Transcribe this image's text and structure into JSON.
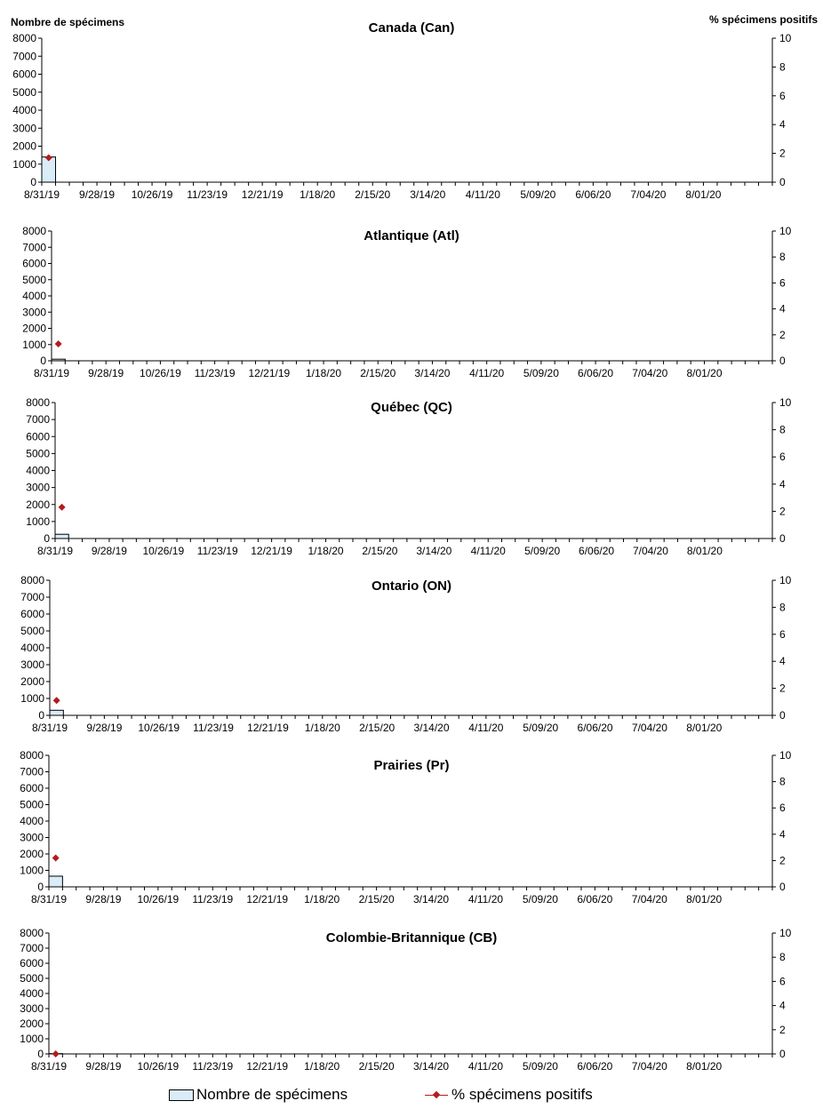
{
  "axis_titles": {
    "left": "Nombre de spécimens",
    "right": "% spécimens positifs"
  },
  "legend": [
    "Nombre de spécimens",
    "% spécimens positifs"
  ],
  "colors": {
    "bar_fill": "#d9ecf7",
    "bar_stroke": "#000000",
    "line": "#b31b1b"
  },
  "chart_data": [
    {
      "type": "bar",
      "title": "Canada (Can)",
      "x_tick_labels": [
        "8/31/19",
        "9/28/19",
        "10/26/19",
        "11/23/19",
        "12/21/19",
        "1/18/20",
        "2/15/20",
        "3/14/20",
        "4/11/20",
        "5/09/20",
        "6/06/20",
        "7/04/20",
        "8/01/20"
      ],
      "y_left_ticks": [
        0,
        1000,
        2000,
        3000,
        4000,
        5000,
        6000,
        7000,
        8000
      ],
      "y_right_ticks": [
        0,
        2,
        4,
        6,
        8,
        10
      ],
      "ylim_left": [
        0,
        8000
      ],
      "ylim_right": [
        0,
        10
      ],
      "series": [
        {
          "name": "Nombre de spécimens",
          "type": "bar",
          "values": [
            1400
          ]
        },
        {
          "name": "% spécimens positifs",
          "type": "line",
          "values": [
            1.7
          ]
        }
      ]
    },
    {
      "type": "bar",
      "title": "Atlantique (Atl)",
      "x_tick_labels": [
        "8/31/19",
        "9/28/19",
        "10/26/19",
        "11/23/19",
        "12/21/19",
        "1/18/20",
        "2/15/20",
        "3/14/20",
        "4/11/20",
        "5/09/20",
        "6/06/20",
        "7/04/20",
        "8/01/20"
      ],
      "y_left_ticks": [
        0,
        1000,
        2000,
        3000,
        4000,
        5000,
        6000,
        7000,
        8000
      ],
      "y_right_ticks": [
        0,
        2,
        4,
        6,
        8,
        10
      ],
      "ylim_left": [
        0,
        8000
      ],
      "ylim_right": [
        0,
        10
      ],
      "series": [
        {
          "name": "Nombre de spécimens",
          "type": "bar",
          "values": [
            100
          ]
        },
        {
          "name": "% spécimens positifs",
          "type": "line",
          "values": [
            1.3
          ]
        }
      ]
    },
    {
      "type": "bar",
      "title": "Québec (QC)",
      "x_tick_labels": [
        "8/31/19",
        "9/28/19",
        "10/26/19",
        "11/23/19",
        "12/21/19",
        "1/18/20",
        "2/15/20",
        "3/14/20",
        "4/11/20",
        "5/09/20",
        "6/06/20",
        "7/04/20",
        "8/01/20"
      ],
      "y_left_ticks": [
        0,
        1000,
        2000,
        3000,
        4000,
        5000,
        6000,
        7000,
        8000
      ],
      "y_right_ticks": [
        0,
        2,
        4,
        6,
        8,
        10
      ],
      "ylim_left": [
        0,
        8000
      ],
      "ylim_right": [
        0,
        10
      ],
      "series": [
        {
          "name": "Nombre de spécimens",
          "type": "bar",
          "values": [
            250
          ]
        },
        {
          "name": "% spécimens positifs",
          "type": "line",
          "values": [
            2.3
          ]
        }
      ]
    },
    {
      "type": "bar",
      "title": "Ontario (ON)",
      "x_tick_labels": [
        "8/31/19",
        "9/28/19",
        "10/26/19",
        "11/23/19",
        "12/21/19",
        "1/18/20",
        "2/15/20",
        "3/14/20",
        "4/11/20",
        "5/09/20",
        "6/06/20",
        "7/04/20",
        "8/01/20"
      ],
      "y_left_ticks": [
        0,
        1000,
        2000,
        3000,
        4000,
        5000,
        6000,
        7000,
        8000
      ],
      "y_right_ticks": [
        0,
        2,
        4,
        6,
        8,
        10
      ],
      "ylim_left": [
        0,
        8000
      ],
      "ylim_right": [
        0,
        10
      ],
      "series": [
        {
          "name": "Nombre de spécimens",
          "type": "bar",
          "values": [
            300
          ]
        },
        {
          "name": "% spécimens positifs",
          "type": "line",
          "values": [
            1.1
          ]
        }
      ]
    },
    {
      "type": "bar",
      "title": "Prairies (Pr)",
      "x_tick_labels": [
        "8/31/19",
        "9/28/19",
        "10/26/19",
        "11/23/19",
        "12/21/19",
        "1/18/20",
        "2/15/20",
        "3/14/20",
        "4/11/20",
        "5/09/20",
        "6/06/20",
        "7/04/20",
        "8/01/20"
      ],
      "y_left_ticks": [
        0,
        1000,
        2000,
        3000,
        4000,
        5000,
        6000,
        7000,
        8000
      ],
      "y_right_ticks": [
        0,
        2,
        4,
        6,
        8,
        10
      ],
      "ylim_left": [
        0,
        8000
      ],
      "ylim_right": [
        0,
        10
      ],
      "series": [
        {
          "name": "Nombre de spécimens",
          "type": "bar",
          "values": [
            650
          ]
        },
        {
          "name": "% spécimens positifs",
          "type": "line",
          "values": [
            2.2
          ]
        }
      ]
    },
    {
      "type": "bar",
      "title": "Colombie-Britannique (CB)",
      "x_tick_labels": [
        "8/31/19",
        "9/28/19",
        "10/26/19",
        "11/23/19",
        "12/21/19",
        "1/18/20",
        "2/15/20",
        "3/14/20",
        "4/11/20",
        "5/09/20",
        "6/06/20",
        "7/04/20",
        "8/01/20"
      ],
      "y_left_ticks": [
        0,
        1000,
        2000,
        3000,
        4000,
        5000,
        6000,
        7000,
        8000
      ],
      "y_right_ticks": [
        0,
        2,
        4,
        6,
        8,
        10
      ],
      "ylim_left": [
        0,
        8000
      ],
      "ylim_right": [
        0,
        10
      ],
      "series": [
        {
          "name": "Nombre de spécimens",
          "type": "bar",
          "values": [
            20
          ]
        },
        {
          "name": "% spécimens positifs",
          "type": "line",
          "values": [
            0.0
          ]
        }
      ]
    }
  ]
}
